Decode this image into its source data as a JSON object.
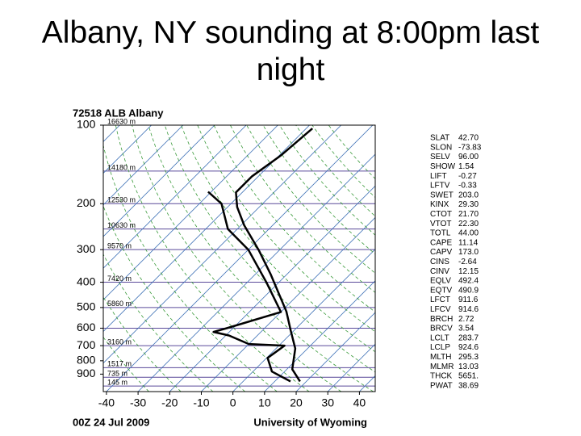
{
  "title": "Albany, NY sounding at 8:00pm last night",
  "chart_data": {
    "type": "skewt",
    "header": "72518 ALB Albany",
    "footer_left": "00Z 24 Jul 2009",
    "footer_right": "University of Wyoming",
    "ylim": [
      1050,
      100
    ],
    "log_y": true,
    "yticks": [
      100,
      200,
      300,
      400,
      500,
      600,
      700,
      800,
      900
    ],
    "isobars": [
      100,
      150,
      200,
      250,
      300,
      400,
      500,
      600,
      700,
      850,
      925,
      1000
    ],
    "xlim": [
      -41,
      45
    ],
    "xticks": [
      -40,
      -30,
      -20,
      -10,
      0,
      10,
      20,
      30,
      40
    ],
    "isotherms": [
      -120,
      -110,
      -100,
      -90,
      -80,
      -70,
      -60,
      -50,
      -40,
      -30,
      -20,
      -10,
      0,
      10,
      20,
      30,
      40
    ],
    "dry_adiabats": [
      -30,
      -20,
      -10,
      0,
      10,
      20,
      30,
      40,
      50,
      60,
      70,
      80,
      90,
      100,
      110,
      120,
      130,
      140,
      150
    ],
    "height_labels": [
      {
        "p": 100,
        "label": "16630 m"
      },
      {
        "p": 150,
        "label": "14180 m"
      },
      {
        "p": 200,
        "label": "12530 m"
      },
      {
        "p": 250,
        "label": "10630 m"
      },
      {
        "p": 300,
        "label": "9570 m"
      },
      {
        "p": 400,
        "label": "7420 m"
      },
      {
        "p": 500,
        "label": "5860 m"
      },
      {
        "p": 700,
        "label": "3160 m"
      },
      {
        "p": 850,
        "label": "1517 m"
      },
      {
        "p": 925,
        "label": "735 m"
      },
      {
        "p": 1000,
        "label": "145 m"
      }
    ],
    "series": [
      {
        "color": "#000000",
        "pressure": [
          960,
          862,
          718,
          613,
          518,
          374,
          301,
          242,
          206,
          181,
          157,
          131,
          103
        ],
        "values": [
          18,
          11.7,
          6.1,
          -1,
          -8.4,
          -25,
          -36.6,
          -49,
          -57,
          -62,
          -62,
          -59.5,
          -58
        ]
      },
      {
        "color": "#000000",
        "pressure": [
          960,
          880,
          780,
          700,
          690,
          640,
          620,
          600,
          520,
          400,
          300,
          250,
          200,
          180
        ],
        "values": [
          15,
          6,
          0.3,
          1.8,
          -10,
          -19,
          -25,
          -22,
          -10,
          -24,
          -40,
          -53,
          -63,
          -71
        ]
      }
    ],
    "indices": [
      [
        "SLAT",
        "42.70"
      ],
      [
        "SLON",
        "-73.83"
      ],
      [
        "SELV",
        "96.00"
      ],
      [
        "SHOW",
        "1.54"
      ],
      [
        "LIFT",
        "-0.27"
      ],
      [
        "LFTV",
        "-0.33"
      ],
      [
        "SWET",
        "203.0"
      ],
      [
        "KINX",
        "29.30"
      ],
      [
        "CTOT",
        "21.70"
      ],
      [
        "VTOT",
        "22.30"
      ],
      [
        "TOTL",
        "44.00"
      ],
      [
        "CAPE",
        "11.14"
      ],
      [
        "CAPV",
        "173.0"
      ],
      [
        "CINS",
        "-2.64"
      ],
      [
        "CINV",
        "12.15"
      ],
      [
        "EQLV",
        "492.4"
      ],
      [
        "EQTV",
        "490.9"
      ],
      [
        "LFCT",
        "911.6"
      ],
      [
        "LFCV",
        "914.6"
      ],
      [
        "BRCH",
        "2.72"
      ],
      [
        "BRCV",
        "3.54"
      ],
      [
        "LCLT",
        "283.7"
      ],
      [
        "LCLP",
        "924.6"
      ],
      [
        "MLTH",
        "295.3"
      ],
      [
        "MLMR",
        "13.03"
      ],
      [
        "THCK",
        "5651."
      ],
      [
        "PWAT",
        "38.69"
      ]
    ]
  }
}
